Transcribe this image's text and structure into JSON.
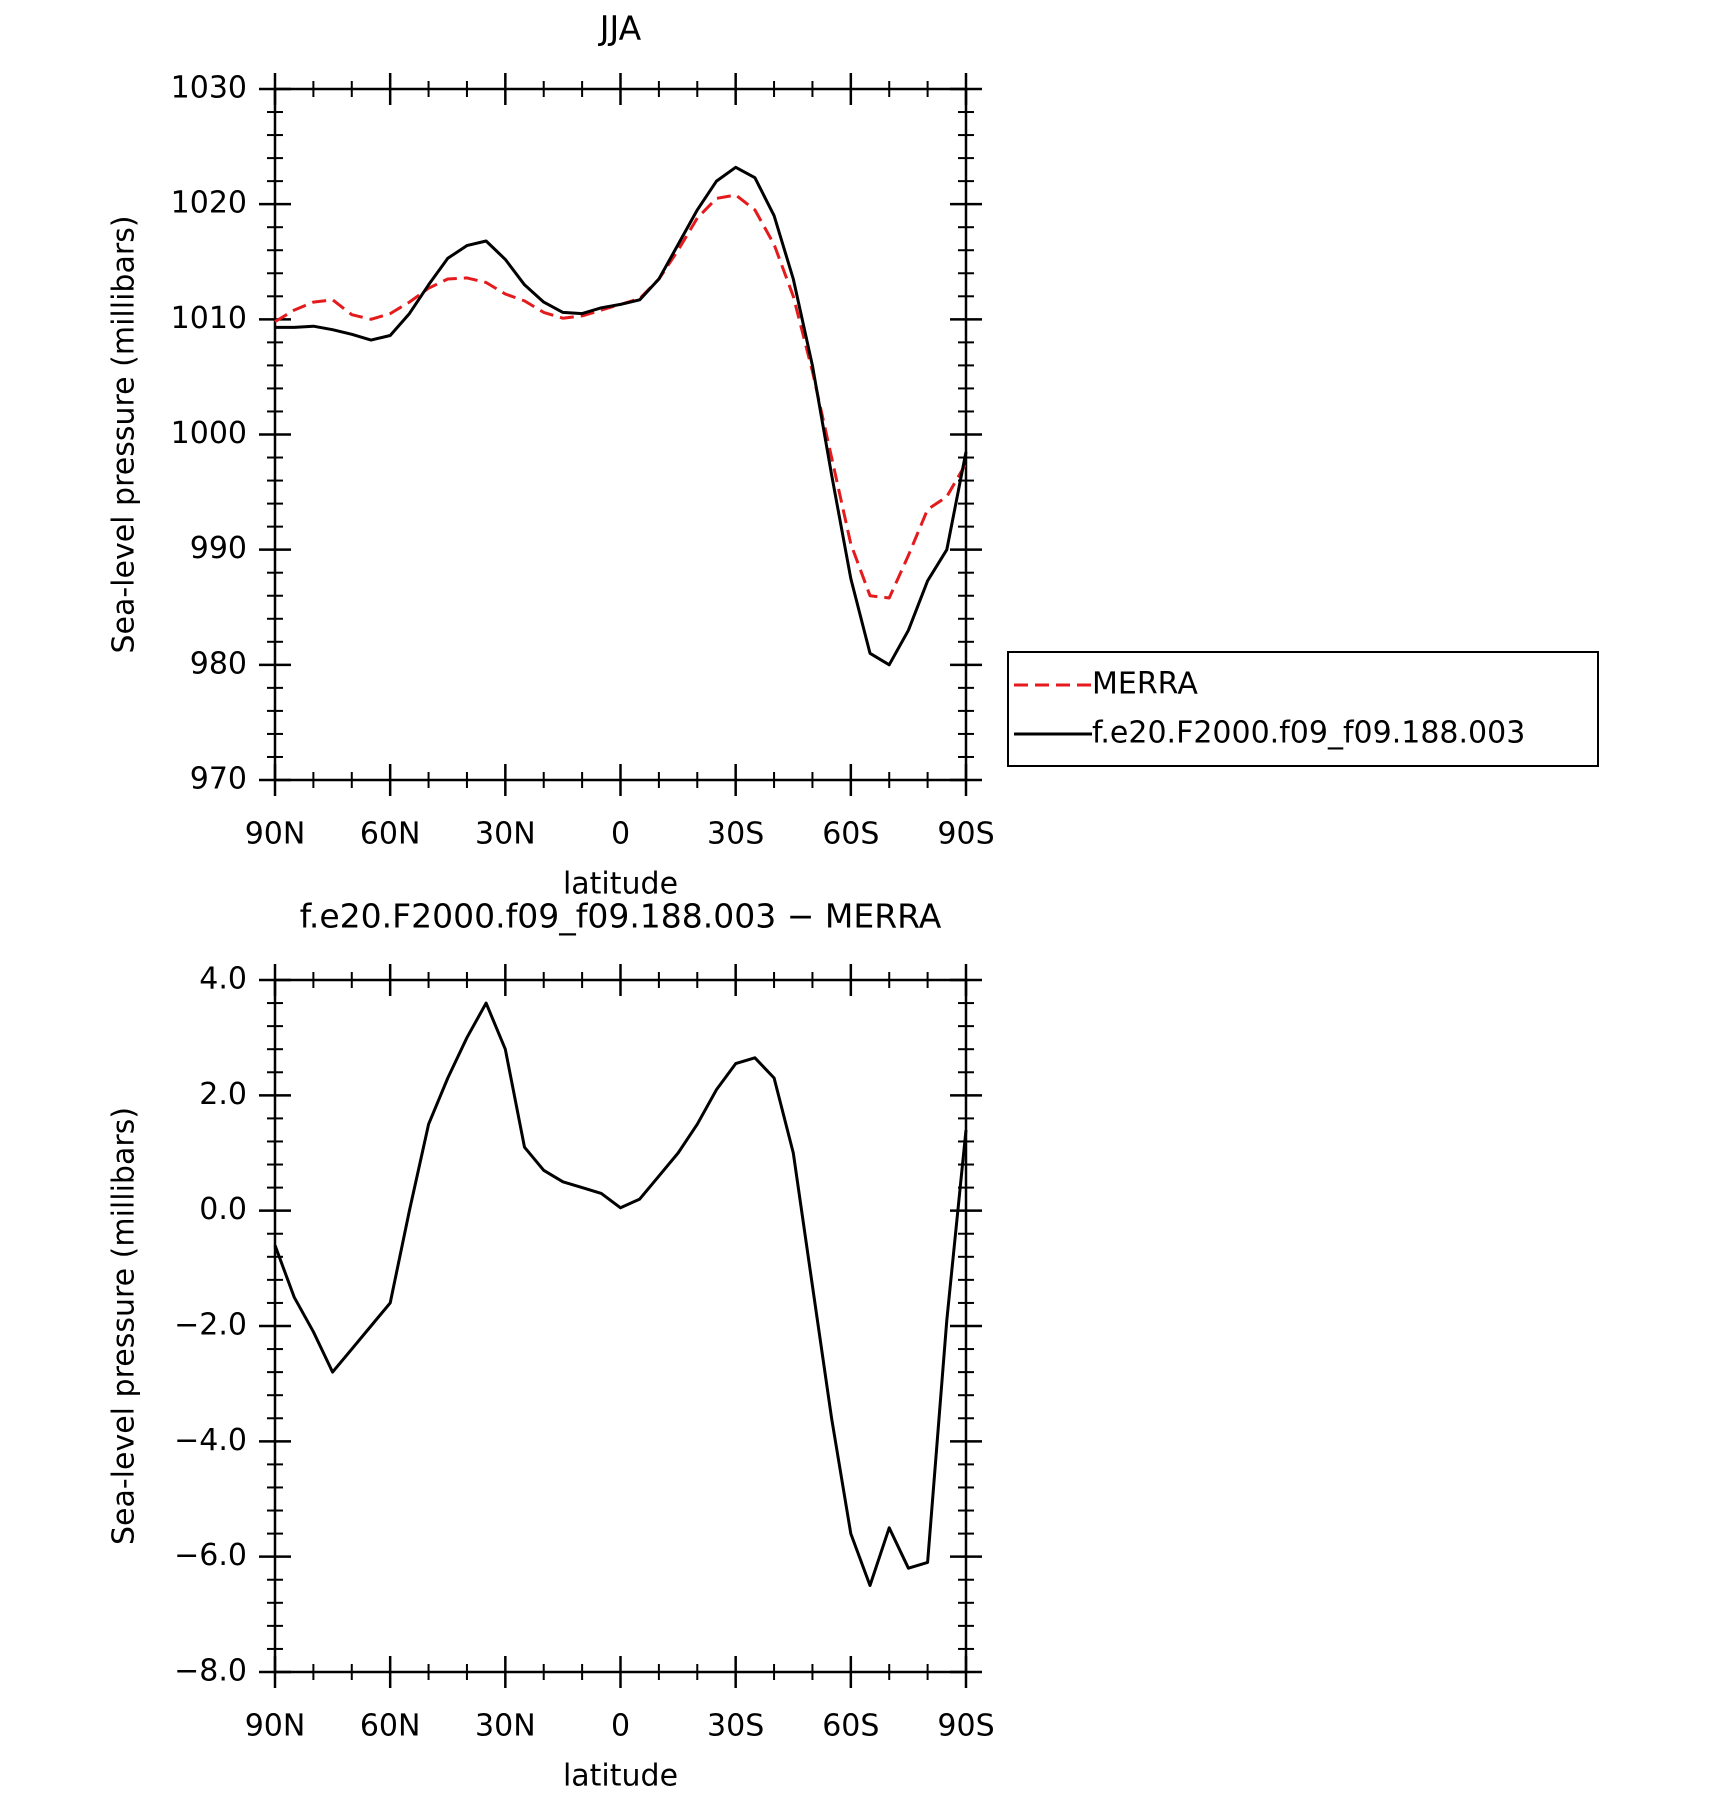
{
  "chart_data": [
    {
      "type": "line",
      "title": "JJA",
      "xlabel": "latitude",
      "ylabel": "Sea-level pressure (millibars)",
      "x": [
        90,
        85,
        80,
        75,
        70,
        65,
        60,
        55,
        50,
        45,
        40,
        35,
        30,
        25,
        20,
        15,
        10,
        5,
        0,
        -5,
        -10,
        -15,
        -20,
        -25,
        -30,
        -35,
        -40,
        -45,
        -50,
        -55,
        -60,
        -65,
        -70,
        -75,
        -80,
        -85,
        -90
      ],
      "xlim": [
        90,
        -90
      ],
      "xticks": [
        {
          "value": 90,
          "label": "90N"
        },
        {
          "value": 60,
          "label": "60N"
        },
        {
          "value": 30,
          "label": "30N"
        },
        0,
        {
          "value": -30,
          "label": "30S"
        },
        {
          "value": -60,
          "label": "60S"
        },
        {
          "value": -90,
          "label": "90S"
        }
      ],
      "ylim": [
        970,
        1030
      ],
      "yticks": [
        970,
        980,
        990,
        1000,
        1010,
        1020,
        1030
      ],
      "legend": "right",
      "series": [
        {
          "name": "MERRA",
          "color": "#e41a1c",
          "dash": true,
          "values": [
            1009.8,
            1010.8,
            1011.5,
            1011.7,
            1010.4,
            1010,
            1010.5,
            1011.5,
            1012.7,
            1013.5,
            1013.6,
            1013.2,
            1012.2,
            1011.6,
            1010.6,
            1010.1,
            1010.3,
            1010.8,
            1011.3,
            1011.8,
            1013.5,
            1016,
            1018.8,
            1020.5,
            1020.8,
            1019.5,
            1016.5,
            1012,
            1005.5,
            998,
            990.5,
            986,
            985.8,
            989.5,
            993.5,
            994.6,
            997.5
          ]
        },
        {
          "name": "f.e20.F2000.f09_f09.188.003",
          "color": "#000000",
          "dash": false,
          "values": [
            1009.3,
            1009.3,
            1009.4,
            1009.1,
            1008.7,
            1008.2,
            1008.6,
            1010.5,
            1013,
            1015.3,
            1016.4,
            1016.8,
            1015.2,
            1013,
            1011.5,
            1010.6,
            1010.5,
            1011,
            1011.3,
            1011.7,
            1013.5,
            1016.5,
            1019.5,
            1022,
            1023.2,
            1022.3,
            1019,
            1013.5,
            1006,
            996.5,
            987.5,
            981,
            980,
            983,
            987.3,
            990,
            998.5
          ]
        }
      ]
    },
    {
      "type": "line",
      "title": "f.e20.F2000.f09_f09.188.003 − MERRA",
      "xlabel": "latitude",
      "ylabel": "Sea-level pressure (millibars)",
      "x": [
        90,
        85,
        80,
        75,
        70,
        65,
        60,
        55,
        50,
        45,
        40,
        35,
        30,
        25,
        20,
        15,
        10,
        5,
        0,
        -5,
        -10,
        -15,
        -20,
        -25,
        -30,
        -35,
        -40,
        -45,
        -50,
        -55,
        -60,
        -65,
        -70,
        -75,
        -80,
        -85,
        -90
      ],
      "xlim": [
        90,
        -90
      ],
      "xticks": [
        {
          "value": 90,
          "label": "90N"
        },
        {
          "value": 60,
          "label": "60N"
        },
        {
          "value": 30,
          "label": "30N"
        },
        0,
        {
          "value": -30,
          "label": "30S"
        },
        {
          "value": -60,
          "label": "60S"
        },
        {
          "value": -90,
          "label": "90S"
        }
      ],
      "ylim": [
        -8,
        4
      ],
      "yticks": [
        {
          "value": -8,
          "label": "−8.0"
        },
        {
          "value": -6,
          "label": "−6.0"
        },
        {
          "value": -4,
          "label": "−4.0"
        },
        {
          "value": -2,
          "label": "−2.0"
        },
        {
          "value": 0,
          "label": "0.0"
        },
        {
          "value": 2,
          "label": "2.0"
        },
        {
          "value": 4,
          "label": "4.0"
        }
      ],
      "series": [
        {
          "color": "#000000",
          "dash": false,
          "values": [
            -0.6,
            -1.5,
            -2.1,
            -2.8,
            -2.4,
            -2.0,
            -1.6,
            0.0,
            1.5,
            2.3,
            3.0,
            3.6,
            2.8,
            1.1,
            0.7,
            0.5,
            0.4,
            0.3,
            0.05,
            0.2,
            0.6,
            1.0,
            1.5,
            2.1,
            2.55,
            2.65,
            2.3,
            1.0,
            -1.3,
            -3.6,
            -5.6,
            -6.5,
            -5.5,
            -6.2,
            -6.1,
            -1.9,
            1.4
          ]
        }
      ]
    }
  ]
}
